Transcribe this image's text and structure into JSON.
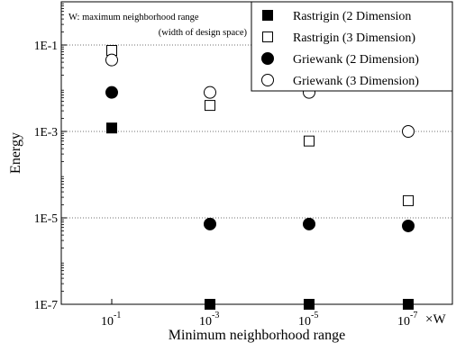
{
  "chart_data": {
    "type": "scatter",
    "xlabel": "Minimum neighborhood range",
    "ylabel": "Energy",
    "x_unit": "×W",
    "note_line1": "W: maximum neighborhood range",
    "note_line2": "(width of design space)",
    "y_log": true,
    "ylim": [
      1e-07,
      1
    ],
    "grid": "horizontal-dotted",
    "legend_position": "top-right",
    "x_ticks": [
      {
        "base": "10",
        "exp": "-1",
        "value": 0.1
      },
      {
        "base": "10",
        "exp": "-3",
        "value": 0.001
      },
      {
        "base": "10",
        "exp": "-5",
        "value": 1e-05
      },
      {
        "base": "10",
        "exp": "-7",
        "value": 1e-07
      }
    ],
    "y_ticks": [
      {
        "label": "1E-1",
        "value": 0.1
      },
      {
        "label": "1E-3",
        "value": 0.001
      },
      {
        "label": "1E-5",
        "value": 1e-05
      },
      {
        "label": "1E-7",
        "value": 1e-07
      }
    ],
    "series": [
      {
        "name": "Rastrigin (2 Dimension",
        "marker": "square",
        "filled": true,
        "x": [
          0.1,
          0.001,
          1e-05,
          1e-07
        ],
        "y": [
          0.0012,
          1e-07,
          1e-07,
          1e-07
        ]
      },
      {
        "name": "Rastrigin (3 Dimension)",
        "marker": "square",
        "filled": false,
        "x": [
          0.1,
          0.001,
          1e-05,
          1e-07
        ],
        "y": [
          0.075,
          0.004,
          0.0006,
          2.5e-05
        ]
      },
      {
        "name": "Griewank (2 Dimension)",
        "marker": "circle",
        "filled": true,
        "x": [
          0.1,
          0.001,
          1e-05,
          1e-07
        ],
        "y": [
          0.008,
          7.2e-06,
          7.2e-06,
          6.5e-06
        ]
      },
      {
        "name": "Griewank (3 Dimension)",
        "marker": "circle",
        "filled": false,
        "x": [
          0.1,
          0.001,
          1e-05,
          1e-07
        ],
        "y": [
          0.045,
          0.008,
          0.008,
          0.001
        ]
      }
    ]
  }
}
